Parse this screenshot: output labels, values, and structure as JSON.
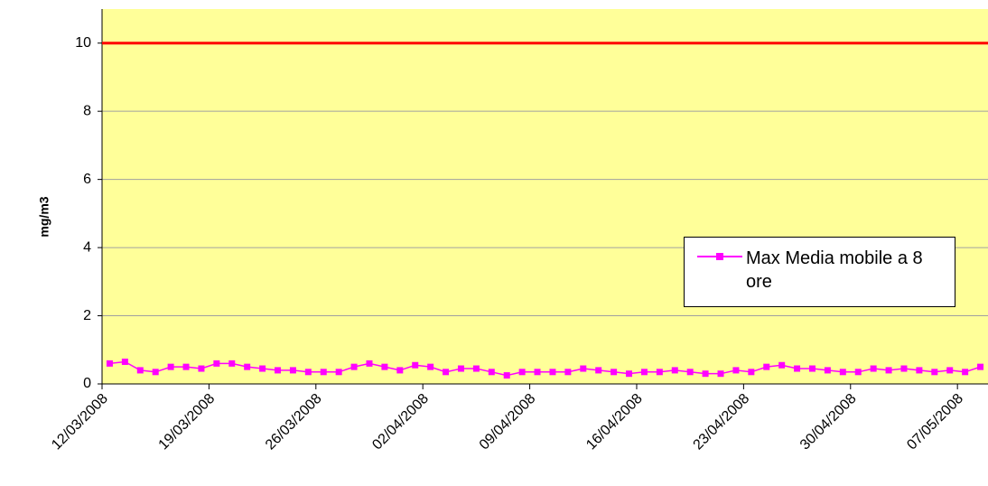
{
  "chart_data": {
    "type": "line",
    "y_label": "mg/m3",
    "categories": [
      "12/03/2008",
      null,
      null,
      null,
      null,
      null,
      null,
      "19/03/2008",
      null,
      null,
      null,
      null,
      null,
      null,
      "26/03/2008",
      null,
      null,
      null,
      null,
      null,
      null,
      "02/04/2008",
      null,
      null,
      null,
      null,
      null,
      null,
      "09/04/2008",
      null,
      null,
      null,
      null,
      null,
      null,
      "16/04/2008",
      null,
      null,
      null,
      null,
      null,
      null,
      "23/04/2008",
      null,
      null,
      null,
      null,
      null,
      null,
      "30/04/2008",
      null,
      null,
      null,
      null,
      null,
      null,
      "07/05/2008",
      null
    ],
    "series": [
      {
        "name": "Max Media mobile a 8 ore",
        "color": "#ff00ff",
        "values": [
          0.6,
          0.65,
          0.4,
          0.35,
          0.5,
          0.5,
          0.45,
          0.6,
          0.6,
          0.5,
          0.45,
          0.4,
          0.4,
          0.35,
          0.35,
          0.35,
          0.5,
          0.6,
          0.5,
          0.4,
          0.55,
          0.5,
          0.35,
          0.45,
          0.45,
          0.35,
          0.25,
          0.35,
          0.35,
          0.35,
          0.35,
          0.45,
          0.4,
          0.35,
          0.3,
          0.35,
          0.35,
          0.4,
          0.35,
          0.3,
          0.3,
          0.4,
          0.35,
          0.5,
          0.55,
          0.45,
          0.45,
          0.4,
          0.35,
          0.35,
          0.45,
          0.4,
          0.45,
          0.4,
          0.35,
          0.4,
          0.35,
          0.5
        ]
      }
    ],
    "reference_line": {
      "value": 10,
      "color": "#ff0000"
    },
    "ylim": [
      0,
      11
    ],
    "yticks": [
      0,
      2,
      4,
      6,
      8,
      10
    ],
    "grid": true,
    "plot_background": "#ffff99"
  }
}
